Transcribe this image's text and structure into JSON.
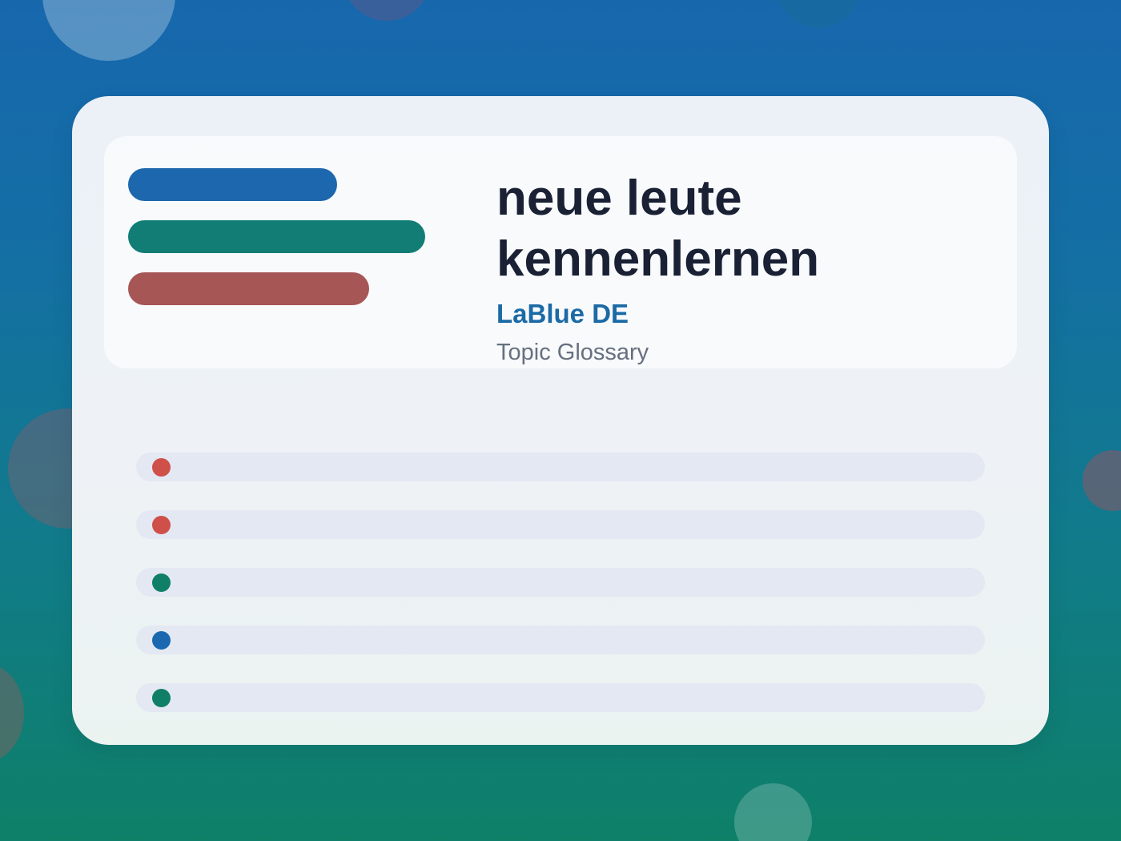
{
  "header": {
    "title": "neue leute kennenlernen",
    "brand": "LaBlue DE",
    "subtitle": "Topic Glossary"
  },
  "colors": {
    "blue": "#1c67ad",
    "teal": "#117d75",
    "red": "#a65654",
    "dot_red": "#cf4f49",
    "dot_green": "#0f7f68",
    "dot_blue": "#1a69b0",
    "title": "#1b2134",
    "brand": "#1b6aa6",
    "subtitle": "#66707f"
  },
  "decor_pills": [
    {
      "color": "blue"
    },
    {
      "color": "teal"
    },
    {
      "color": "red"
    }
  ],
  "list_rows": [
    {
      "dot_color": "red"
    },
    {
      "dot_color": "red"
    },
    {
      "dot_color": "green"
    },
    {
      "dot_color": "blue"
    },
    {
      "dot_color": "green"
    }
  ]
}
